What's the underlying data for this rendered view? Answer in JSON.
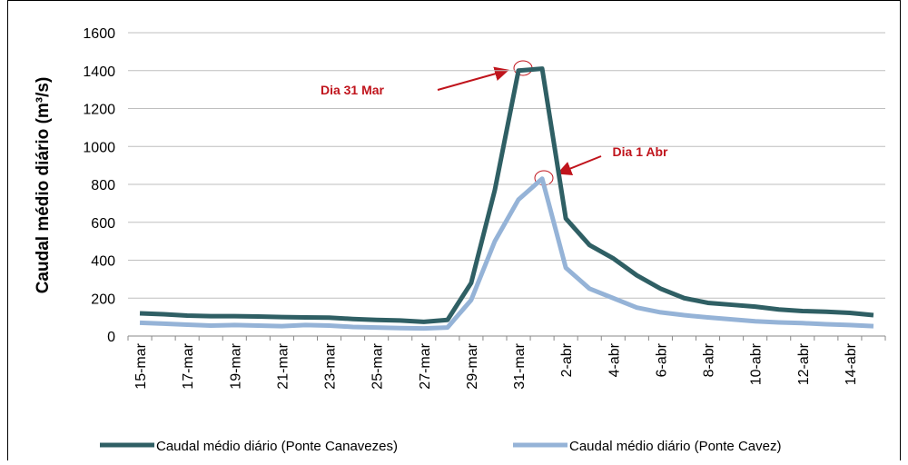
{
  "chart_data": {
    "type": "line",
    "y_label": "Caudal médio diário (m³/s)",
    "categories": [
      "15-mar",
      null,
      "17-mar",
      null,
      "19-mar",
      null,
      "21-mar",
      null,
      "23-mar",
      null,
      "25-mar",
      null,
      "27-mar",
      null,
      "29-mar",
      null,
      "31-mar",
      null,
      "2-abr",
      null,
      "4-abr",
      null,
      "6-abr",
      null,
      "8-abr",
      null,
      "10-abr",
      null,
      "12-abr",
      null,
      "14-abr",
      null
    ],
    "series": [
      {
        "name": "Caudal médio diário (Ponte Canavezes)",
        "color": "#2f5f64",
        "values": [
          120,
          115,
          108,
          105,
          105,
          103,
          100,
          98,
          97,
          90,
          85,
          82,
          75,
          85,
          280,
          770,
          1400,
          1410,
          620,
          480,
          410,
          320,
          250,
          200,
          175,
          165,
          155,
          140,
          132,
          128,
          122,
          110
        ]
      },
      {
        "name": "Caudal médio diário (Ponte Cavez)",
        "color": "#95b3d7",
        "values": [
          70,
          65,
          60,
          55,
          58,
          55,
          52,
          58,
          55,
          48,
          45,
          42,
          40,
          45,
          190,
          500,
          720,
          830,
          360,
          250,
          200,
          150,
          125,
          110,
          98,
          88,
          78,
          72,
          68,
          62,
          58,
          52
        ]
      }
    ],
    "ylim": [
      0,
      1600
    ],
    "yticks": [
      0,
      200,
      400,
      600,
      800,
      1000,
      1200,
      1400,
      1600
    ],
    "grid": true,
    "annotations": [
      "Dia 31 Mar",
      "Dia 1 Abr"
    ]
  }
}
